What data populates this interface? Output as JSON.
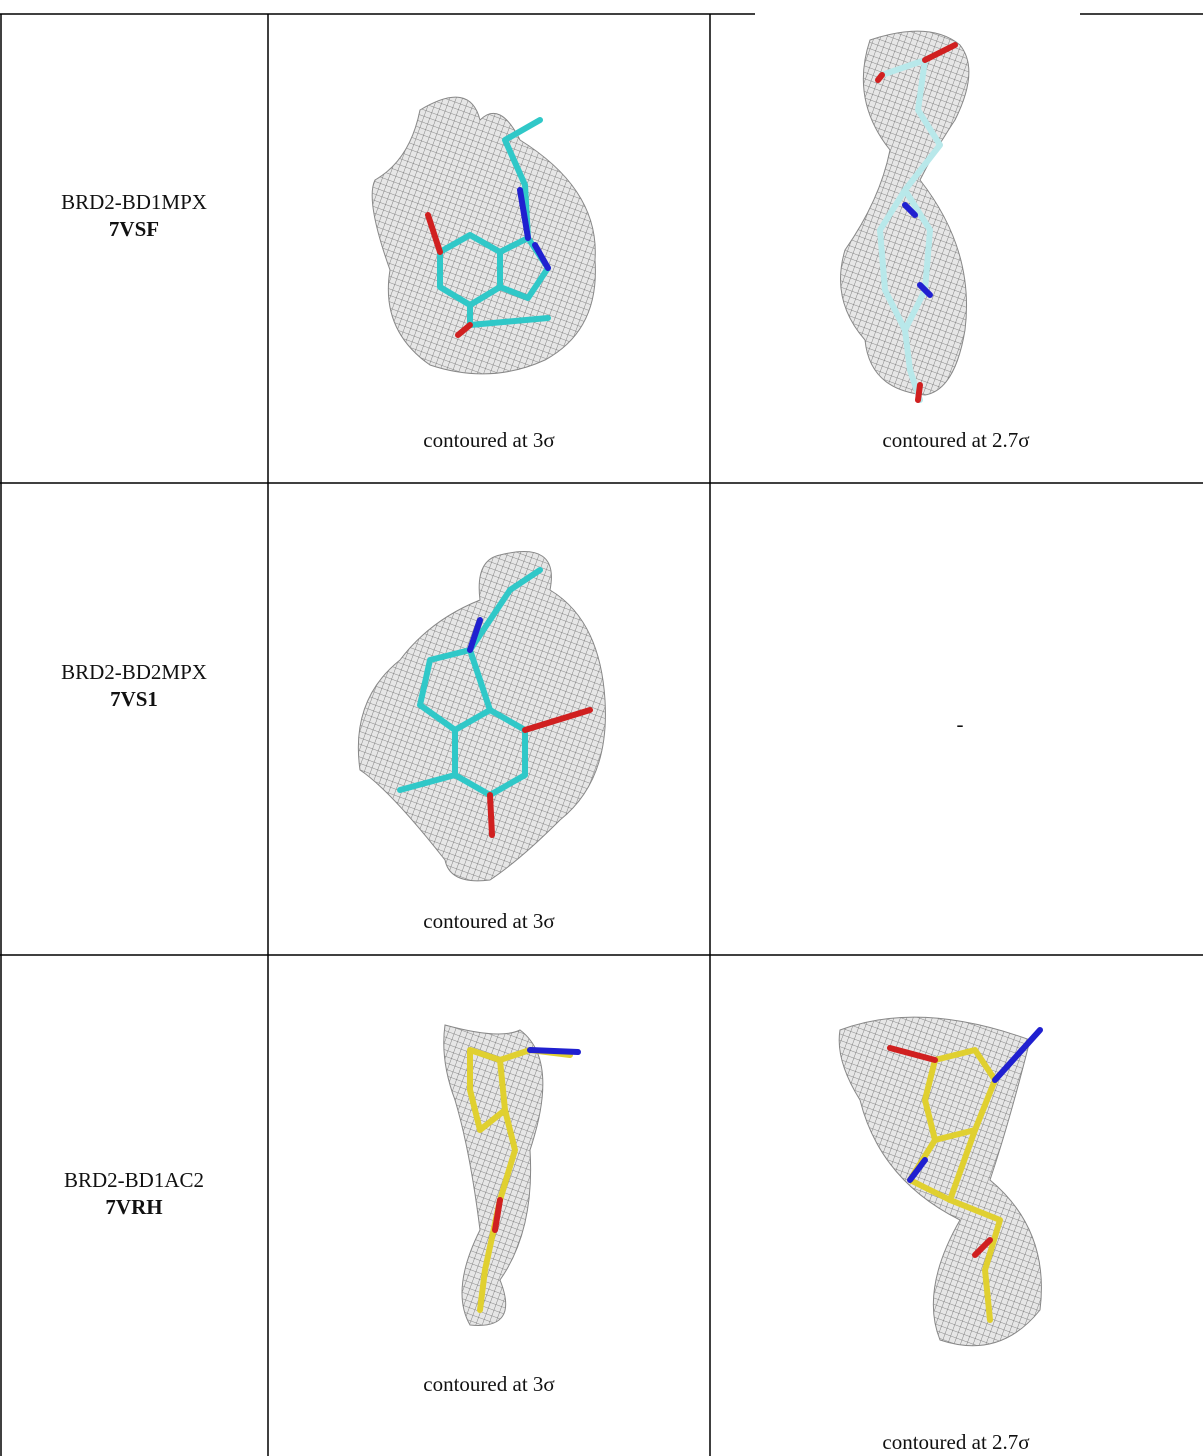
{
  "table": {
    "rows": [
      {
        "name": "BRD2-BD1MPX",
        "pdb": "7VSF",
        "cells": [
          {
            "caption": "contoured at 3σ"
          },
          {
            "caption": "contoured at 2.7σ"
          }
        ]
      },
      {
        "name": "BRD2-BD2MPX",
        "pdb": "7VS1",
        "cells": [
          {
            "caption": "contoured at 3σ"
          },
          {
            "caption": "-"
          }
        ]
      },
      {
        "name": "BRD2-BD1AC2",
        "pdb": "7VRH",
        "cells": [
          {
            "caption": "contoured at 3σ"
          },
          {
            "caption": "contoured at 2.7σ"
          }
        ]
      }
    ]
  }
}
